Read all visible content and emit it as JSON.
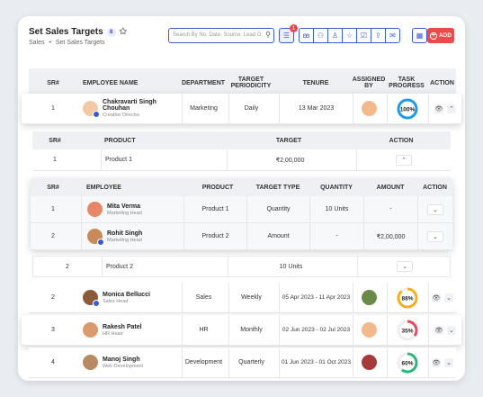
{
  "header": {
    "title": "Set Sales Targets",
    "count": "8",
    "breadcrumb_root": "Sales",
    "breadcrumb_sep": "•",
    "breadcrumb_current": "Set Sales Targets",
    "search_placeholder": "Search By No, Date, Source, Lead O",
    "filter_badge": "1",
    "add_label": "ADD"
  },
  "main_columns": [
    "SR#",
    "EMPLOYEE NAME",
    "DEPARTMENT",
    "TARGET PERIODICITY",
    "TENURE",
    "ASSIGNED BY",
    "TASK PROGRESS",
    "ACTION"
  ],
  "rows": [
    {
      "sr": "1",
      "name": "Chakravarti Singh Chouhan",
      "role": "Creative Director",
      "dept": "Marketing",
      "period": "Daily",
      "tenure": "13 Mar 2023",
      "progress": "100%",
      "pct": 100,
      "color": "#1e9be8"
    },
    {
      "sr": "2",
      "name": "Monica Bellucci",
      "role": "Sales Head",
      "dept": "Sales",
      "period": "Weekly",
      "tenure": "05 Apr 2023 - 11 Apr 2023",
      "progress": "88%",
      "pct": 88,
      "color": "#f2b01e"
    },
    {
      "sr": "3",
      "name": "Rakesh Patel",
      "role": "HR Head",
      "dept": "HR",
      "period": "Monthly",
      "tenure": "02 Jun 2023 - 02 Jul 2023",
      "progress": "35%",
      "pct": 35,
      "color": "#e84a5f"
    },
    {
      "sr": "4",
      "name": "Manoj Singh",
      "role": "Web Development",
      "dept": "Development",
      "period": "Quarterly",
      "tenure": "01 Jun 2023 - 01 Oct 2023",
      "progress": "60%",
      "pct": 60,
      "color": "#2fb57c"
    }
  ],
  "product_columns": [
    "SR#",
    "PRODUCT",
    "TARGET",
    "ACTION"
  ],
  "products": [
    {
      "sr": "1",
      "name": "Product 1",
      "target": "₹2,00,000"
    },
    {
      "sr": "2",
      "name": "Product 2",
      "target": "10 Units"
    }
  ],
  "sub_columns": [
    "SR#",
    "EMPLOYEE",
    "PRODUCT",
    "TARGET TYPE",
    "QUANTITY",
    "AMOUNT",
    "ACTION"
  ],
  "sub_rows": [
    {
      "sr": "1",
      "name": "Mita Verma",
      "role": "Marketing Head",
      "product": "Product 1",
      "type": "Quantity",
      "qty": "10 Units",
      "amount": "-"
    },
    {
      "sr": "2",
      "name": "Rohit Singh",
      "role": "Marketing Head",
      "product": "Product 2",
      "type": "Amount",
      "qty": "-",
      "amount": "₹2,00,000"
    }
  ],
  "icons": {
    "view": "eye-icon",
    "expand": "chevron-icon",
    "search": "search-icon",
    "filter": "filter-icon",
    "pin": "pin-icon"
  }
}
